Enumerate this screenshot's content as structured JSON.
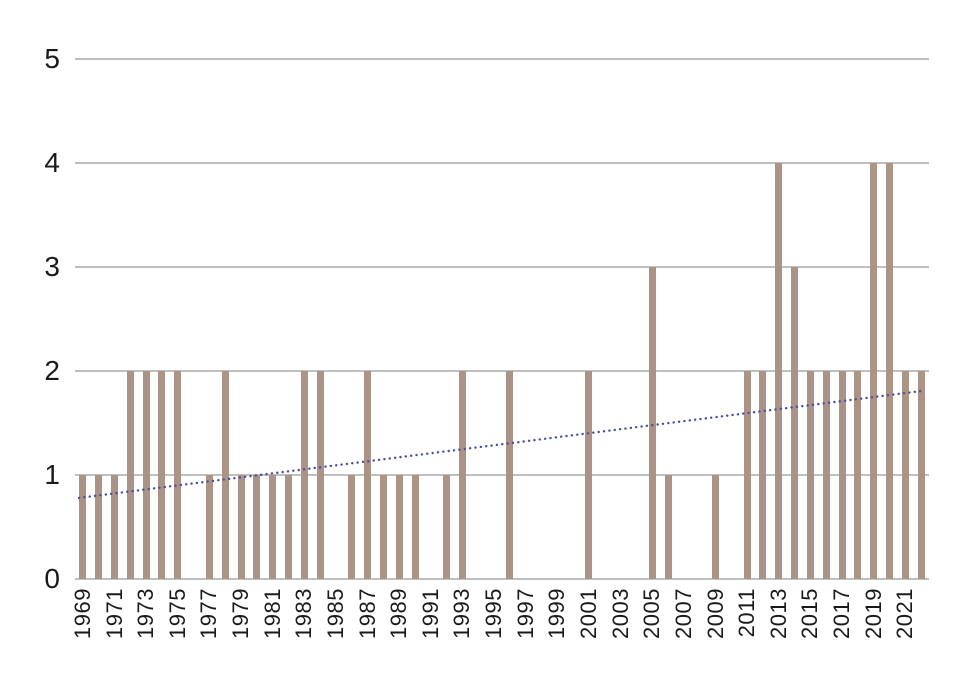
{
  "chart_data": {
    "type": "bar",
    "title": "",
    "xlabel": "",
    "ylabel": "",
    "categories": [
      1969,
      1970,
      1971,
      1972,
      1973,
      1974,
      1975,
      1976,
      1977,
      1978,
      1979,
      1980,
      1981,
      1982,
      1983,
      1984,
      1985,
      1986,
      1987,
      1988,
      1989,
      1990,
      1991,
      1992,
      1993,
      1994,
      1995,
      1996,
      1997,
      1998,
      1999,
      2000,
      2001,
      2002,
      2003,
      2004,
      2005,
      2006,
      2007,
      2008,
      2009,
      2010,
      2011,
      2012,
      2013,
      2014,
      2015,
      2016,
      2017,
      2018,
      2019,
      2020,
      2021,
      2022
    ],
    "values": [
      1,
      1,
      1,
      2,
      2,
      2,
      2,
      0,
      1,
      2,
      1,
      1,
      1,
      1,
      2,
      2,
      0,
      1,
      2,
      1,
      1,
      1,
      0,
      1,
      2,
      0,
      0,
      2,
      0,
      0,
      0,
      0,
      2,
      0,
      0,
      0,
      3,
      1,
      0,
      0,
      1,
      0,
      2,
      2,
      4,
      3,
      2,
      2,
      2,
      2,
      4,
      4,
      2,
      2
    ],
    "x_tick_labels": [
      "1969",
      "1971",
      "1973",
      "1975",
      "1977",
      "1979",
      "1981",
      "1983",
      "1985",
      "1987",
      "1989",
      "1991",
      "1993",
      "1995",
      "1997",
      "1999",
      "2001",
      "2003",
      "2005",
      "2007",
      "2009",
      "2011",
      "2013",
      "2015",
      "2017",
      "2019",
      "2021"
    ],
    "y_ticks": [
      0,
      1,
      2,
      3,
      4,
      5
    ],
    "y_tick_labels": [
      "0",
      "1",
      "2",
      "3",
      "4",
      "5"
    ],
    "ylim": [
      0,
      5
    ],
    "grid": true,
    "legend": false,
    "bar_color": "#ab9486",
    "gridline_color": "#bfbfbf",
    "text_color": "#1a1a1a",
    "background_color": "#ffffff",
    "trendline": {
      "type": "linear",
      "style": "dotted",
      "color": "#4c4e9e",
      "start_value": 0.78,
      "end_value": 1.81
    }
  }
}
